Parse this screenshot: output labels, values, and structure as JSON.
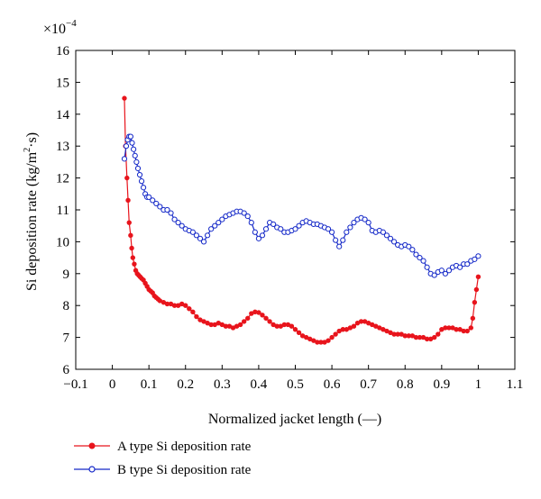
{
  "chart_data": {
    "type": "line",
    "title": "",
    "xlabel": "Normalized jacket length (—)",
    "ylabel_main": "Si deposition rate (kg/m",
    "ylabel_sup": "2",
    "ylabel_end": "·s)",
    "y_multiplier_base": "×10",
    "y_multiplier_exp": "−4",
    "xlim": [
      -0.1,
      1.1
    ],
    "ylim": [
      6,
      16
    ],
    "x_ticks": [
      -0.1,
      0,
      0.1,
      0.2,
      0.3,
      0.4,
      0.5,
      0.6,
      0.7,
      0.8,
      0.9,
      1,
      1.1
    ],
    "x_tick_labels": [
      "−0.1",
      "0",
      "0.1",
      "0.2",
      "0.3",
      "0.4",
      "0.5",
      "0.6",
      "0.7",
      "0.8",
      "0.9",
      "1",
      "1.1"
    ],
    "y_ticks": [
      6,
      7,
      8,
      9,
      10,
      11,
      12,
      13,
      14,
      15,
      16
    ],
    "y_tick_labels": [
      "6",
      "7",
      "8",
      "9",
      "10",
      "11",
      "12",
      "13",
      "14",
      "15",
      "16"
    ],
    "grid": false,
    "legend_position": "bottom-left, below plot",
    "series": [
      {
        "name": "A type Si deposition rate",
        "color": "#e8141c",
        "marker": "filled-circle",
        "x": [
          0.033,
          0.036,
          0.04,
          0.043,
          0.046,
          0.05,
          0.053,
          0.056,
          0.06,
          0.064,
          0.068,
          0.072,
          0.076,
          0.08,
          0.085,
          0.09,
          0.095,
          0.1,
          0.105,
          0.11,
          0.115,
          0.12,
          0.125,
          0.13,
          0.14,
          0.15,
          0.16,
          0.17,
          0.18,
          0.19,
          0.2,
          0.21,
          0.22,
          0.23,
          0.24,
          0.25,
          0.26,
          0.27,
          0.28,
          0.29,
          0.3,
          0.31,
          0.32,
          0.33,
          0.34,
          0.35,
          0.36,
          0.37,
          0.38,
          0.39,
          0.4,
          0.41,
          0.42,
          0.43,
          0.44,
          0.45,
          0.46,
          0.47,
          0.48,
          0.49,
          0.5,
          0.51,
          0.52,
          0.53,
          0.54,
          0.55,
          0.56,
          0.57,
          0.58,
          0.59,
          0.6,
          0.61,
          0.62,
          0.63,
          0.64,
          0.65,
          0.66,
          0.67,
          0.68,
          0.69,
          0.7,
          0.71,
          0.72,
          0.73,
          0.74,
          0.75,
          0.76,
          0.77,
          0.78,
          0.79,
          0.8,
          0.81,
          0.82,
          0.83,
          0.84,
          0.85,
          0.86,
          0.87,
          0.88,
          0.89,
          0.9,
          0.91,
          0.92,
          0.93,
          0.94,
          0.95,
          0.96,
          0.97,
          0.98,
          0.985,
          0.99,
          0.995,
          1.0
        ],
        "y": [
          14.5,
          13.0,
          12.0,
          11.3,
          10.6,
          10.2,
          9.8,
          9.5,
          9.3,
          9.1,
          9.0,
          8.95,
          8.9,
          8.85,
          8.8,
          8.7,
          8.6,
          8.5,
          8.45,
          8.4,
          8.3,
          8.25,
          8.2,
          8.15,
          8.1,
          8.05,
          8.05,
          8.0,
          8.0,
          8.05,
          8.0,
          7.9,
          7.8,
          7.65,
          7.55,
          7.5,
          7.45,
          7.4,
          7.4,
          7.45,
          7.4,
          7.35,
          7.35,
          7.3,
          7.35,
          7.4,
          7.5,
          7.6,
          7.75,
          7.8,
          7.78,
          7.7,
          7.6,
          7.5,
          7.4,
          7.35,
          7.35,
          7.4,
          7.4,
          7.35,
          7.25,
          7.15,
          7.05,
          7.0,
          6.95,
          6.9,
          6.85,
          6.85,
          6.85,
          6.9,
          7.0,
          7.1,
          7.2,
          7.25,
          7.25,
          7.3,
          7.35,
          7.45,
          7.5,
          7.5,
          7.45,
          7.4,
          7.35,
          7.3,
          7.25,
          7.2,
          7.15,
          7.1,
          7.1,
          7.1,
          7.05,
          7.05,
          7.05,
          7.0,
          7.0,
          7.0,
          6.95,
          6.95,
          7.0,
          7.1,
          7.25,
          7.3,
          7.3,
          7.3,
          7.25,
          7.25,
          7.2,
          7.2,
          7.3,
          7.6,
          8.1,
          8.5,
          8.9
        ]
      },
      {
        "name": "B type Si deposition rate",
        "color": "#1428c8",
        "marker": "open-circle",
        "x": [
          0.033,
          0.038,
          0.042,
          0.046,
          0.05,
          0.054,
          0.058,
          0.062,
          0.066,
          0.07,
          0.075,
          0.08,
          0.085,
          0.09,
          0.095,
          0.1,
          0.11,
          0.12,
          0.13,
          0.14,
          0.15,
          0.16,
          0.17,
          0.18,
          0.19,
          0.2,
          0.21,
          0.22,
          0.23,
          0.24,
          0.25,
          0.26,
          0.27,
          0.28,
          0.29,
          0.3,
          0.31,
          0.32,
          0.33,
          0.34,
          0.35,
          0.36,
          0.37,
          0.38,
          0.39,
          0.4,
          0.41,
          0.42,
          0.43,
          0.44,
          0.45,
          0.46,
          0.47,
          0.48,
          0.49,
          0.5,
          0.51,
          0.52,
          0.53,
          0.54,
          0.55,
          0.56,
          0.57,
          0.58,
          0.59,
          0.6,
          0.61,
          0.62,
          0.63,
          0.64,
          0.65,
          0.66,
          0.67,
          0.68,
          0.69,
          0.7,
          0.71,
          0.72,
          0.73,
          0.74,
          0.75,
          0.76,
          0.77,
          0.78,
          0.79,
          0.8,
          0.81,
          0.82,
          0.83,
          0.84,
          0.85,
          0.86,
          0.87,
          0.88,
          0.89,
          0.9,
          0.91,
          0.92,
          0.93,
          0.94,
          0.95,
          0.96,
          0.97,
          0.98,
          0.99,
          1.0
        ],
        "y": [
          12.6,
          13.0,
          13.2,
          13.3,
          13.3,
          13.1,
          12.9,
          12.7,
          12.5,
          12.3,
          12.1,
          11.9,
          11.7,
          11.5,
          11.4,
          11.4,
          11.3,
          11.2,
          11.1,
          11.0,
          11.0,
          10.9,
          10.7,
          10.6,
          10.5,
          10.4,
          10.35,
          10.3,
          10.2,
          10.1,
          10.0,
          10.2,
          10.4,
          10.5,
          10.6,
          10.7,
          10.8,
          10.85,
          10.9,
          10.95,
          10.95,
          10.9,
          10.8,
          10.6,
          10.3,
          10.1,
          10.2,
          10.4,
          10.6,
          10.55,
          10.45,
          10.4,
          10.3,
          10.3,
          10.35,
          10.4,
          10.5,
          10.6,
          10.65,
          10.6,
          10.55,
          10.55,
          10.5,
          10.45,
          10.4,
          10.3,
          10.05,
          9.85,
          10.05,
          10.3,
          10.45,
          10.6,
          10.7,
          10.75,
          10.7,
          10.6,
          10.35,
          10.3,
          10.35,
          10.3,
          10.2,
          10.1,
          10.0,
          9.9,
          9.85,
          9.9,
          9.85,
          9.75,
          9.6,
          9.5,
          9.4,
          9.2,
          9.0,
          8.95,
          9.05,
          9.1,
          9.0,
          9.1,
          9.2,
          9.25,
          9.2,
          9.3,
          9.3,
          9.4,
          9.45,
          9.55
        ]
      }
    ]
  }
}
